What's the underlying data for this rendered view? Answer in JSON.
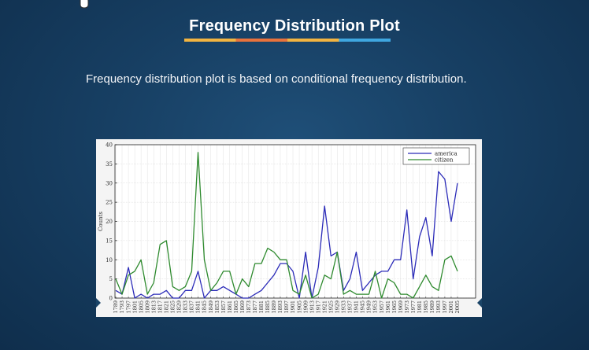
{
  "slide": {
    "title": "Frequency Distribution Plot",
    "subtitle": "Frequency distribution plot is based on conditional frequency distribution."
  },
  "colors": {
    "title_accent": [
      "#f2b441",
      "#e8723c",
      "#f2b441",
      "#3fa7e0"
    ],
    "america": "#2b2bb8",
    "citizen": "#2e8a2e"
  },
  "chart_data": {
    "type": "line",
    "title": "",
    "xlabel": "",
    "ylabel": "Counts",
    "ylim": [
      0,
      40
    ],
    "yticks": [
      0,
      5,
      10,
      15,
      20,
      25,
      30,
      35,
      40
    ],
    "grid": true,
    "legend_placement": "top-right",
    "x": [
      "1789",
      "1793",
      "1797",
      "1801",
      "1805",
      "1809",
      "1813",
      "1817",
      "1821",
      "1825",
      "1829",
      "1833",
      "1837",
      "1841",
      "1845",
      "1849",
      "1853",
      "1857",
      "1861",
      "1865",
      "1869",
      "1873",
      "1877",
      "1881",
      "1885",
      "1889",
      "1893",
      "1897",
      "1901",
      "1905",
      "1909",
      "1913",
      "1917",
      "1921",
      "1925",
      "1929",
      "1933",
      "1937",
      "1941",
      "1945",
      "1949",
      "1953",
      "1957",
      "1961",
      "1965",
      "1969",
      "1973",
      "1977",
      "1981",
      "1985",
      "1989",
      "1993",
      "1997",
      "2001",
      "2005"
    ],
    "series": [
      {
        "name": "america",
        "values": [
          2,
          1,
          8,
          0,
          1,
          0,
          1,
          1,
          2,
          0,
          0,
          2,
          2,
          7,
          0,
          2,
          2,
          3,
          2,
          1,
          0,
          0,
          1,
          2,
          4,
          6,
          9,
          9,
          7,
          0,
          12,
          0,
          8,
          24,
          11,
          12,
          2,
          5,
          12,
          2,
          4,
          6,
          7,
          7,
          10,
          10,
          23,
          5,
          16,
          21,
          11,
          33,
          31,
          20,
          30
        ]
      },
      {
        "name": "citizen",
        "values": [
          5,
          1,
          6,
          7,
          10,
          1,
          4,
          14,
          15,
          3,
          2,
          3,
          7,
          38,
          10,
          2,
          4,
          7,
          7,
          1,
          5,
          3,
          9,
          9,
          13,
          12,
          10,
          10,
          2,
          1,
          6,
          0,
          1,
          6,
          5,
          12,
          1,
          2,
          1,
          1,
          1,
          7,
          0,
          5,
          4,
          1,
          1,
          0,
          3,
          6,
          3,
          2,
          10,
          11,
          7
        ]
      }
    ]
  }
}
